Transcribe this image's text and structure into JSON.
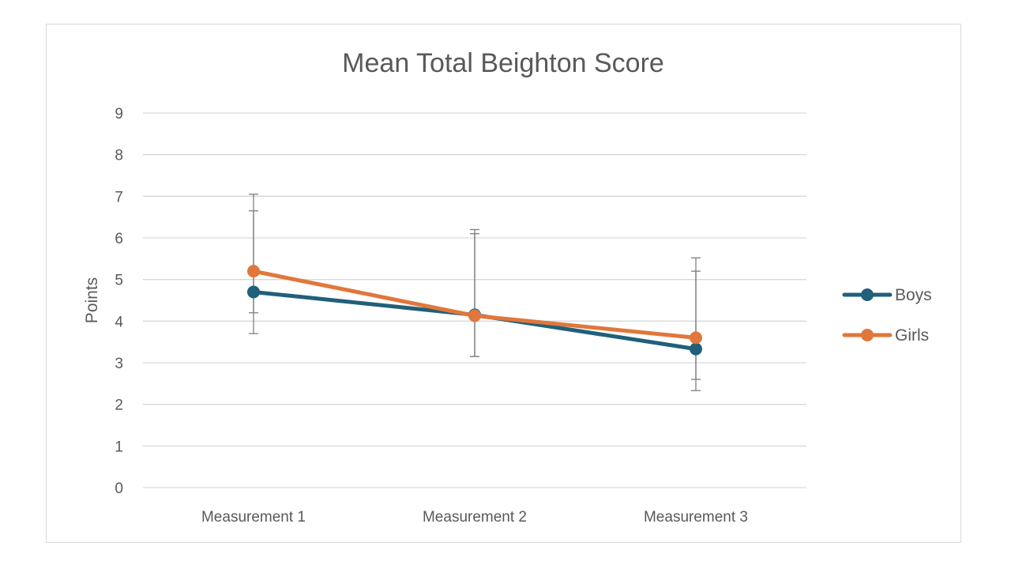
{
  "chart_data": {
    "type": "line",
    "title": "Mean Total Beighton Score",
    "xlabel": "",
    "ylabel": "Points",
    "ylim": [
      0,
      9
    ],
    "yticks": [
      "0",
      "1",
      "2",
      "3",
      "4",
      "5",
      "6",
      "7",
      "8",
      "9"
    ],
    "categories": [
      "Measurement 1",
      "Measurement 2",
      "Measurement 3"
    ],
    "grid": "horizontal",
    "legend_position": "right",
    "series": [
      {
        "name": "Boys",
        "color": "#215f7a",
        "values": [
          4.7,
          4.15,
          3.33
        ],
        "error_low": [
          3.7,
          3.15,
          2.33
        ],
        "error_high": [
          6.65,
          6.2,
          5.2
        ]
      },
      {
        "name": "Girls",
        "color": "#e0773c",
        "values": [
          5.2,
          4.13,
          3.6
        ],
        "error_low": [
          4.2,
          3.15,
          2.6
        ],
        "error_high": [
          7.05,
          6.1,
          5.52
        ]
      }
    ]
  }
}
